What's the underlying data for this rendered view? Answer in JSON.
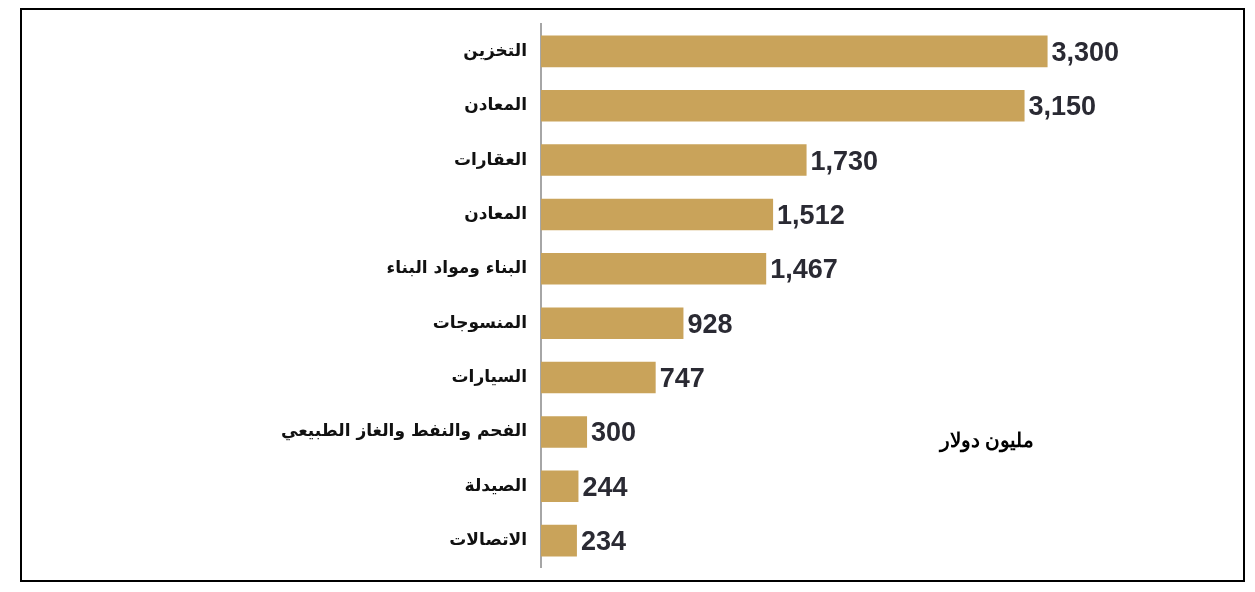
{
  "chart_data": {
    "type": "bar",
    "orientation": "horizontal",
    "categories": [
      "التخزين",
      "المعادن",
      "العقارات",
      "المعادن",
      "البناء ومواد البناء",
      "المنسوجات",
      "السيارات",
      "الفحم والنفط والغاز الطبيعي",
      "الصيدلة",
      "الاتصالات"
    ],
    "values": [
      3300,
      3150,
      1730,
      1512,
      1467,
      928,
      747,
      300,
      244,
      234
    ],
    "value_labels": [
      "3,300",
      "3,150",
      "1,730",
      "1,512",
      "1,467",
      "928",
      "747",
      "300",
      "244",
      "234"
    ],
    "color": "#c9a35a",
    "annotations": [
      "مليون دولار"
    ],
    "legend": false
  }
}
